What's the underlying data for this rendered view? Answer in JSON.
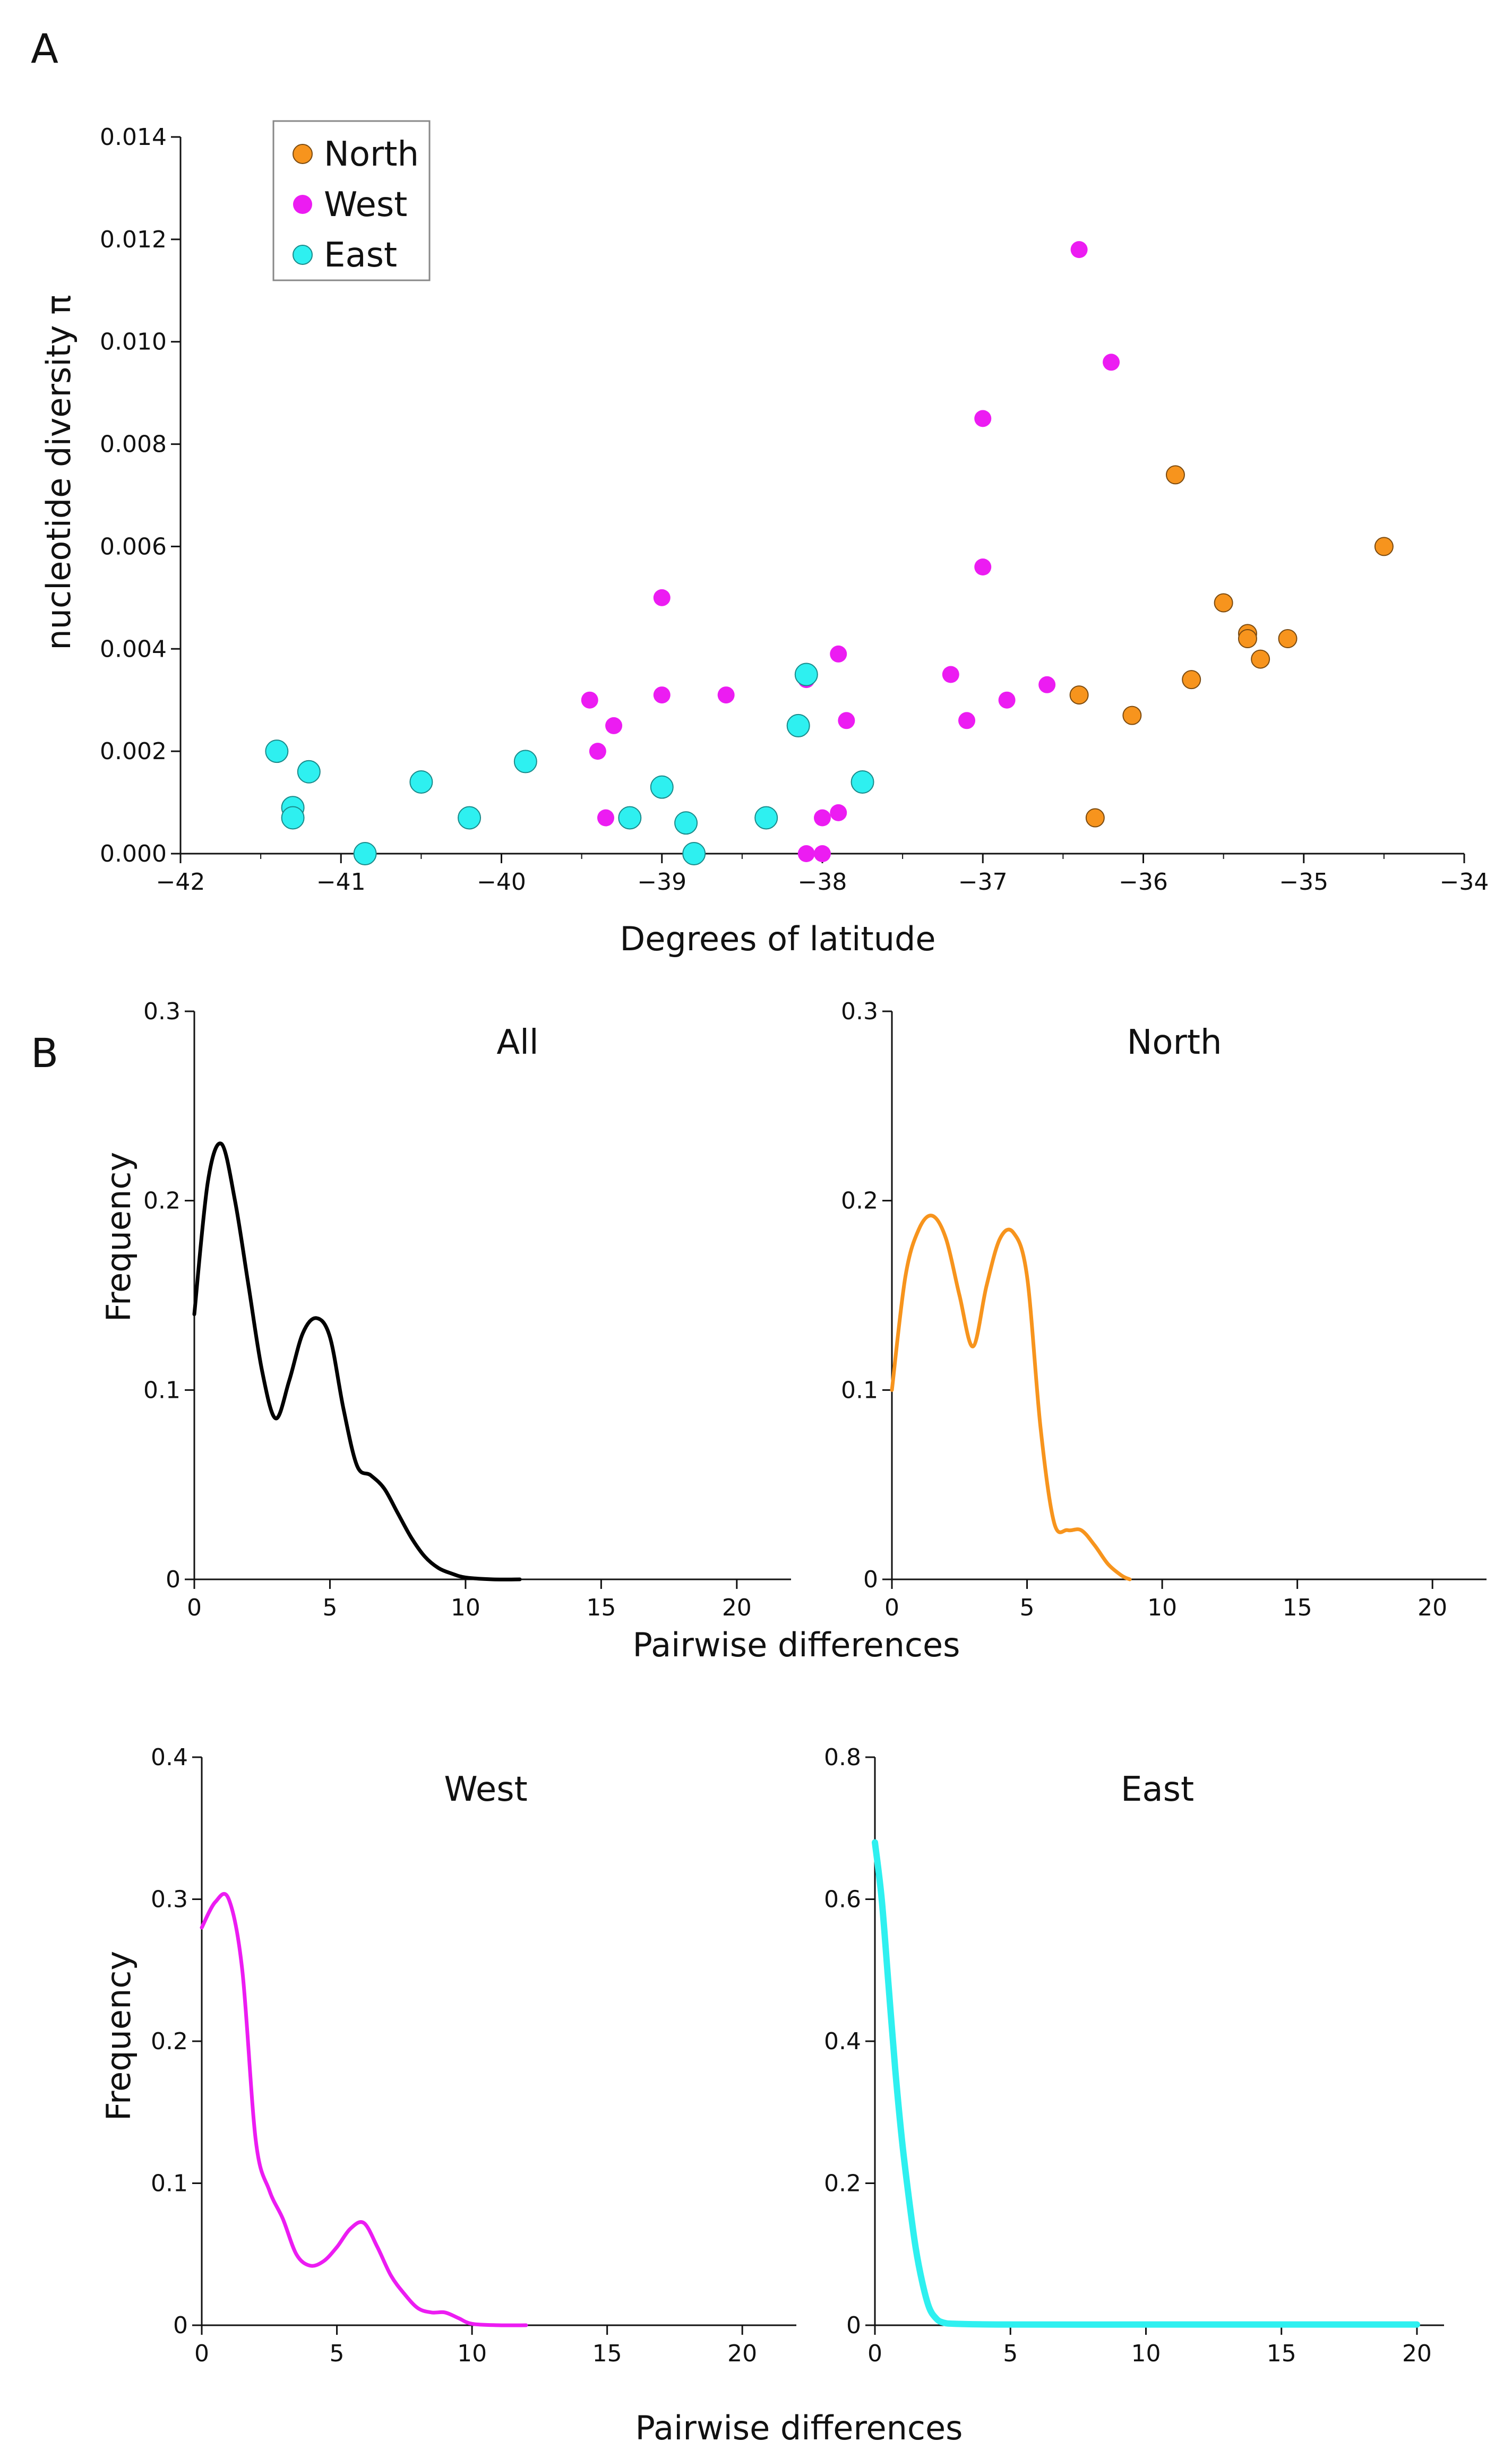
{
  "panel_labels": {
    "a": "A",
    "b": "B"
  },
  "chart_data": [
    {
      "id": "scatter",
      "type": "scatter",
      "xlabel": "Degrees of latitude",
      "ylabel": "nucleotide diversity π",
      "xlim": [
        -42,
        -34
      ],
      "ylim": [
        0,
        0.014
      ],
      "xticks": [
        -42,
        -41,
        -40,
        -39,
        -38,
        -37,
        -36,
        -35,
        -34
      ],
      "xtick_labels": [
        "−42",
        "−41",
        "−40",
        "−39",
        "−38",
        "−37",
        "−36",
        "−35",
        "−34"
      ],
      "yticks": [
        0,
        0.002,
        0.004,
        0.006,
        0.008,
        0.01,
        0.012,
        0.014
      ],
      "ytick_labels": [
        "0.000",
        "0.002",
        "0.004",
        "0.006",
        "0.008",
        "0.010",
        "0.012",
        "0.014"
      ],
      "legend": [
        "North",
        "West",
        "East"
      ],
      "series": [
        {
          "name": "North",
          "color": "#F7941D",
          "points": [
            [
              -35.8,
              0.0074
            ],
            [
              -34.5,
              0.006
            ],
            [
              -35.5,
              0.0049
            ],
            [
              -35.35,
              0.0043
            ],
            [
              -35.35,
              0.0042
            ],
            [
              -35.1,
              0.0042
            ],
            [
              -35.27,
              0.0038
            ],
            [
              -35.7,
              0.0034
            ],
            [
              -36.4,
              0.0031
            ],
            [
              -36.07,
              0.0027
            ],
            [
              -36.3,
              0.0007
            ]
          ]
        },
        {
          "name": "West",
          "color": "#EC1CF2",
          "points": [
            [
              -36.4,
              0.0118
            ],
            [
              -36.2,
              0.0096
            ],
            [
              -37.0,
              0.0085
            ],
            [
              -37.0,
              0.0056
            ],
            [
              -39.0,
              0.005
            ],
            [
              -37.9,
              0.0039
            ],
            [
              -38.1,
              0.0034
            ],
            [
              -37.2,
              0.0035
            ],
            [
              -36.6,
              0.0033
            ],
            [
              -36.85,
              0.003
            ],
            [
              -38.6,
              0.0031
            ],
            [
              -39.0,
              0.0031
            ],
            [
              -39.45,
              0.003
            ],
            [
              -37.1,
              0.0026
            ],
            [
              -37.85,
              0.0026
            ],
            [
              -39.3,
              0.0025
            ],
            [
              -39.4,
              0.002
            ],
            [
              -39.35,
              0.0007
            ],
            [
              -37.9,
              0.0008
            ],
            [
              -38.0,
              0.0007
            ],
            [
              -38.0,
              0.0
            ],
            [
              -38.1,
              0.0
            ]
          ]
        },
        {
          "name": "East",
          "color": "#2EF0F0",
          "points": [
            [
              -41.4,
              0.002
            ],
            [
              -41.2,
              0.0016
            ],
            [
              -41.3,
              0.0009
            ],
            [
              -41.3,
              0.0007
            ],
            [
              -40.85,
              0.0
            ],
            [
              -40.5,
              0.0014
            ],
            [
              -40.2,
              0.0007
            ],
            [
              -39.85,
              0.0018
            ],
            [
              -39.0,
              0.0013
            ],
            [
              -39.2,
              0.0007
            ],
            [
              -38.85,
              0.0006
            ],
            [
              -38.8,
              0.0
            ],
            [
              -38.35,
              0.0007
            ],
            [
              -38.15,
              0.0025
            ],
            [
              -38.1,
              0.0035
            ],
            [
              -37.75,
              0.0014
            ]
          ]
        }
      ]
    },
    {
      "id": "all",
      "type": "line",
      "title": "All",
      "color": "#000000",
      "xlim": [
        0,
        22
      ],
      "ylim": [
        0,
        0.3
      ],
      "xticks": [
        0,
        5,
        10,
        15,
        20
      ],
      "yticks": [
        0,
        0.1,
        0.2,
        0.3
      ],
      "ytick_labels": [
        "0",
        "0.1",
        "0.2",
        "0.3"
      ],
      "ylabel": "Frequency",
      "x": [
        0,
        0.5,
        1,
        1.5,
        2,
        2.5,
        3,
        3.5,
        4,
        4.5,
        5,
        5.5,
        6,
        6.5,
        7,
        7.5,
        8,
        8.5,
        9,
        9.5,
        10,
        11,
        12
      ],
      "y": [
        0.14,
        0.21,
        0.23,
        0.2,
        0.155,
        0.11,
        0.085,
        0.105,
        0.13,
        0.138,
        0.128,
        0.09,
        0.06,
        0.055,
        0.048,
        0.035,
        0.022,
        0.012,
        0.006,
        0.003,
        0.001,
        0,
        0
      ]
    },
    {
      "id": "north",
      "type": "line",
      "title": "North",
      "color": "#F7941D",
      "xlim": [
        0,
        22
      ],
      "ylim": [
        0,
        0.3
      ],
      "xticks": [
        0,
        5,
        10,
        15,
        20
      ],
      "yticks": [
        0,
        0.1,
        0.2,
        0.3
      ],
      "ytick_labels": [
        "0",
        "0.1",
        "0.2",
        "0.3"
      ],
      "x": [
        0,
        0.5,
        1,
        1.5,
        2,
        2.5,
        3,
        3.5,
        4,
        4.5,
        5,
        5.5,
        6,
        6.5,
        7,
        7.5,
        8,
        8.5,
        8.8
      ],
      "y": [
        0.1,
        0.16,
        0.185,
        0.192,
        0.18,
        0.15,
        0.123,
        0.155,
        0.18,
        0.183,
        0.16,
        0.08,
        0.03,
        0.026,
        0.026,
        0.018,
        0.008,
        0.002,
        0
      ]
    },
    {
      "id": "west",
      "type": "line",
      "title": "West",
      "color": "#EC1CF2",
      "xlim": [
        0,
        22
      ],
      "ylim": [
        0,
        0.4
      ],
      "xticks": [
        0,
        5,
        10,
        15,
        20
      ],
      "yticks": [
        0,
        0.1,
        0.2,
        0.3,
        0.4
      ],
      "ytick_labels": [
        "0",
        "0.1",
        "0.2",
        "0.3",
        "0.4"
      ],
      "ylabel": "Frequency",
      "x": [
        0,
        0.5,
        1,
        1.5,
        2,
        2.5,
        3,
        3.5,
        4,
        4.5,
        5,
        5.5,
        6,
        6.5,
        7,
        7.5,
        8,
        8.5,
        9,
        9.5,
        10,
        11,
        12
      ],
      "y": [
        0.28,
        0.298,
        0.3,
        0.25,
        0.13,
        0.095,
        0.075,
        0.05,
        0.042,
        0.045,
        0.055,
        0.068,
        0.072,
        0.055,
        0.035,
        0.022,
        0.012,
        0.009,
        0.009,
        0.005,
        0.001,
        0,
        0
      ]
    },
    {
      "id": "east",
      "type": "line",
      "title": "East",
      "color": "#2EF0F0",
      "xlim": [
        0,
        21
      ],
      "ylim": [
        0,
        0.8
      ],
      "xticks": [
        0,
        5,
        10,
        15,
        20
      ],
      "yticks": [
        0,
        0.2,
        0.4,
        0.6,
        0.8
      ],
      "ytick_labels": [
        "0",
        "0.2",
        "0.4",
        "0.6",
        "0.8"
      ],
      "x": [
        0,
        0.25,
        0.5,
        0.75,
        1,
        1.25,
        1.5,
        1.75,
        2,
        2.25,
        2.5,
        3,
        5,
        10,
        15,
        20
      ],
      "y": [
        0.68,
        0.6,
        0.48,
        0.36,
        0.26,
        0.18,
        0.11,
        0.06,
        0.025,
        0.01,
        0.004,
        0.002,
        0.001,
        0.001,
        0.001,
        0.001
      ]
    }
  ],
  "shared_xlabel_top": "Pairwise differences",
  "shared_xlabel_bottom": "Pairwise differences"
}
